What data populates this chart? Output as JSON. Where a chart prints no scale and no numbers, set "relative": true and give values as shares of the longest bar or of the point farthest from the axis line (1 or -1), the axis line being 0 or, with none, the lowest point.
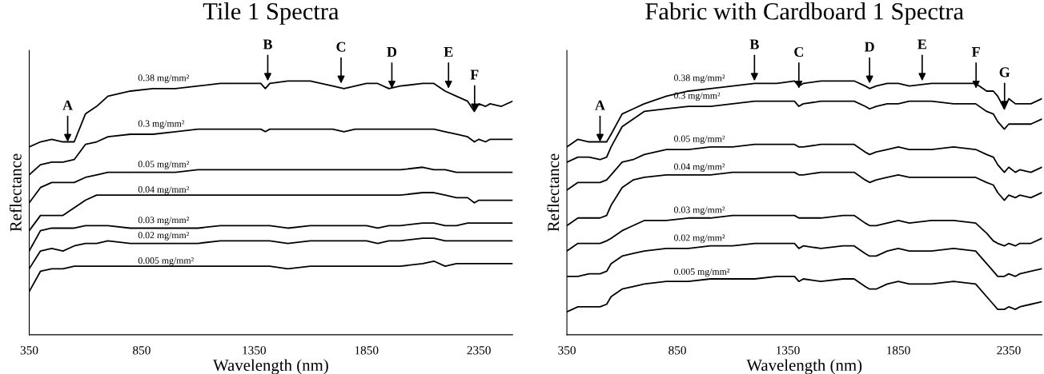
{
  "chart_data": [
    {
      "type": "line",
      "title": "Tile 1 Spectra",
      "xlabel": "Wavelength (nm)",
      "ylabel": "Reflectance",
      "relative": true,
      "xlim": [
        350,
        2500
      ],
      "xticks": [
        350,
        850,
        1350,
        1850,
        2350
      ],
      "grid": false,
      "x": [
        350,
        400,
        450,
        500,
        550,
        600,
        650,
        700,
        800,
        900,
        1000,
        1100,
        1200,
        1300,
        1380,
        1400,
        1420,
        1500,
        1600,
        1700,
        1750,
        1800,
        1850,
        1900,
        1950,
        2000,
        2100,
        2150,
        2200,
        2250,
        2300,
        2330,
        2350,
        2380,
        2400,
        2450,
        2500
      ],
      "series": [
        {
          "name": "0.38 mg/mm²",
          "color": "#000000",
          "values": [
            0.74,
            0.76,
            0.77,
            0.76,
            0.76,
            0.87,
            0.9,
            0.94,
            0.96,
            0.97,
            0.97,
            0.98,
            0.99,
            0.99,
            0.99,
            0.97,
            0.99,
            1.0,
            1.0,
            0.98,
            0.97,
            0.98,
            0.99,
            0.99,
            0.97,
            0.98,
            0.99,
            0.99,
            0.96,
            0.94,
            0.92,
            0.88,
            0.91,
            0.9,
            0.91,
            0.9,
            0.92
          ]
        },
        {
          "name": "0.3 mg/mm²",
          "color": "#000000",
          "values": [
            0.63,
            0.67,
            0.68,
            0.68,
            0.69,
            0.75,
            0.76,
            0.78,
            0.79,
            0.79,
            0.8,
            0.81,
            0.81,
            0.81,
            0.81,
            0.8,
            0.81,
            0.81,
            0.81,
            0.81,
            0.8,
            0.81,
            0.81,
            0.81,
            0.81,
            0.81,
            0.81,
            0.81,
            0.8,
            0.79,
            0.78,
            0.76,
            0.77,
            0.76,
            0.77,
            0.77,
            0.77
          ]
        },
        {
          "name": "0.05 mg/mm²",
          "color": "#000000",
          "values": [
            0.52,
            0.58,
            0.6,
            0.6,
            0.6,
            0.62,
            0.63,
            0.64,
            0.64,
            0.64,
            0.64,
            0.65,
            0.65,
            0.65,
            0.65,
            0.65,
            0.65,
            0.65,
            0.65,
            0.65,
            0.65,
            0.65,
            0.65,
            0.65,
            0.65,
            0.65,
            0.66,
            0.65,
            0.65,
            0.64,
            0.64,
            0.64,
            0.64,
            0.64,
            0.64,
            0.64,
            0.64
          ]
        },
        {
          "name": "0.04 mg/mm²",
          "color": "#000000",
          "values": [
            0.41,
            0.47,
            0.47,
            0.47,
            0.5,
            0.53,
            0.55,
            0.55,
            0.55,
            0.55,
            0.55,
            0.55,
            0.55,
            0.55,
            0.55,
            0.55,
            0.55,
            0.55,
            0.55,
            0.55,
            0.55,
            0.55,
            0.55,
            0.55,
            0.55,
            0.55,
            0.56,
            0.56,
            0.55,
            0.54,
            0.54,
            0.52,
            0.53,
            0.53,
            0.53,
            0.53,
            0.53
          ]
        },
        {
          "name": "0.03 mg/mm²",
          "color": "#000000",
          "values": [
            0.33,
            0.41,
            0.42,
            0.42,
            0.42,
            0.43,
            0.43,
            0.43,
            0.42,
            0.42,
            0.42,
            0.42,
            0.43,
            0.43,
            0.43,
            0.43,
            0.43,
            0.42,
            0.43,
            0.43,
            0.43,
            0.43,
            0.43,
            0.42,
            0.43,
            0.43,
            0.44,
            0.44,
            0.43,
            0.43,
            0.44,
            0.44,
            0.44,
            0.44,
            0.44,
            0.44,
            0.44
          ]
        },
        {
          "name": "0.02 mg/mm²",
          "color": "#000000",
          "values": [
            0.26,
            0.33,
            0.34,
            0.33,
            0.35,
            0.36,
            0.36,
            0.37,
            0.36,
            0.36,
            0.36,
            0.36,
            0.37,
            0.37,
            0.37,
            0.37,
            0.37,
            0.36,
            0.37,
            0.37,
            0.37,
            0.37,
            0.37,
            0.36,
            0.37,
            0.37,
            0.38,
            0.38,
            0.37,
            0.37,
            0.37,
            0.37,
            0.37,
            0.37,
            0.37,
            0.37,
            0.37
          ]
        },
        {
          "name": "0.005 mg/mm²",
          "color": "#000000",
          "values": [
            0.17,
            0.25,
            0.26,
            0.26,
            0.27,
            0.27,
            0.27,
            0.27,
            0.27,
            0.27,
            0.27,
            0.27,
            0.27,
            0.27,
            0.27,
            0.27,
            0.27,
            0.26,
            0.27,
            0.27,
            0.27,
            0.27,
            0.27,
            0.27,
            0.27,
            0.27,
            0.28,
            0.29,
            0.27,
            0.28,
            0.28,
            0.28,
            0.28,
            0.28,
            0.28,
            0.28,
            0.28
          ]
        }
      ],
      "annotations": [
        {
          "text": "A",
          "x": 521,
          "y": 0.76
        },
        {
          "text": "B",
          "x": 1411,
          "y": 1.0
        },
        {
          "text": "C",
          "x": 1737,
          "y": 0.99
        },
        {
          "text": "D",
          "x": 1963,
          "y": 0.97
        },
        {
          "text": "E",
          "x": 2215,
          "y": 0.97
        },
        {
          "text": "F",
          "x": 2331,
          "y": 0.88
        }
      ]
    },
    {
      "type": "line",
      "title": "Fabric with Cardboard 1 Spectra",
      "xlabel": "Wavelength (nm)",
      "ylabel": "Reflectance",
      "relative": true,
      "xlim": [
        350,
        2500
      ],
      "xticks": [
        350,
        850,
        1350,
        1850,
        2350
      ],
      "grid": false,
      "x": [
        350,
        400,
        450,
        500,
        530,
        550,
        600,
        650,
        700,
        800,
        900,
        1000,
        1100,
        1200,
        1300,
        1380,
        1400,
        1420,
        1500,
        1600,
        1650,
        1700,
        1720,
        1750,
        1800,
        1850,
        1900,
        2000,
        2100,
        2200,
        2250,
        2280,
        2300,
        2330,
        2350,
        2380,
        2400,
        2450,
        2500
      ],
      "series": [
        {
          "name": "0.38 mg/mm²",
          "color": "#000000",
          "values": [
            0.74,
            0.77,
            0.76,
            0.76,
            0.76,
            0.79,
            0.87,
            0.89,
            0.91,
            0.94,
            0.96,
            0.97,
            0.98,
            0.99,
            0.99,
            1.0,
            0.98,
            0.99,
            1.0,
            1.0,
            1.0,
            0.98,
            0.97,
            0.98,
            0.99,
            0.99,
            0.98,
            0.99,
            0.99,
            0.99,
            0.96,
            0.96,
            0.94,
            0.89,
            0.93,
            0.91,
            0.91,
            0.91,
            0.93
          ]
        },
        {
          "name": "0.3 mg/mm²",
          "color": "#000000",
          "values": [
            0.68,
            0.7,
            0.7,
            0.69,
            0.7,
            0.74,
            0.82,
            0.85,
            0.88,
            0.89,
            0.9,
            0.9,
            0.91,
            0.92,
            0.92,
            0.92,
            0.9,
            0.91,
            0.92,
            0.92,
            0.92,
            0.9,
            0.89,
            0.9,
            0.91,
            0.91,
            0.92,
            0.92,
            0.91,
            0.91,
            0.88,
            0.87,
            0.84,
            0.81,
            0.83,
            0.83,
            0.83,
            0.83,
            0.85
          ]
        },
        {
          "name": "0.05 mg/mm²",
          "color": "#000000",
          "values": [
            0.57,
            0.6,
            0.6,
            0.6,
            0.61,
            0.63,
            0.68,
            0.69,
            0.71,
            0.73,
            0.73,
            0.74,
            0.74,
            0.75,
            0.75,
            0.75,
            0.74,
            0.74,
            0.75,
            0.75,
            0.75,
            0.72,
            0.71,
            0.72,
            0.73,
            0.74,
            0.73,
            0.73,
            0.74,
            0.73,
            0.71,
            0.7,
            0.67,
            0.64,
            0.66,
            0.64,
            0.65,
            0.64,
            0.66
          ]
        },
        {
          "name": "0.04 mg/mm²",
          "color": "#000000",
          "values": [
            0.43,
            0.46,
            0.46,
            0.46,
            0.47,
            0.51,
            0.58,
            0.61,
            0.62,
            0.63,
            0.63,
            0.63,
            0.64,
            0.64,
            0.64,
            0.64,
            0.63,
            0.63,
            0.64,
            0.64,
            0.64,
            0.61,
            0.6,
            0.61,
            0.62,
            0.63,
            0.62,
            0.62,
            0.62,
            0.62,
            0.6,
            0.59,
            0.56,
            0.53,
            0.55,
            0.54,
            0.55,
            0.54,
            0.56
          ]
        },
        {
          "name": "0.03 mg/mm²",
          "color": "#000000",
          "values": [
            0.33,
            0.36,
            0.36,
            0.36,
            0.37,
            0.38,
            0.41,
            0.43,
            0.45,
            0.45,
            0.46,
            0.46,
            0.47,
            0.47,
            0.47,
            0.47,
            0.46,
            0.46,
            0.46,
            0.47,
            0.47,
            0.44,
            0.43,
            0.43,
            0.44,
            0.45,
            0.44,
            0.45,
            0.45,
            0.44,
            0.4,
            0.37,
            0.36,
            0.35,
            0.36,
            0.35,
            0.36,
            0.36,
            0.38
          ]
        },
        {
          "name": "0.02 mg/mm²",
          "color": "#000000",
          "values": [
            0.23,
            0.23,
            0.24,
            0.24,
            0.25,
            0.28,
            0.31,
            0.32,
            0.33,
            0.34,
            0.34,
            0.35,
            0.35,
            0.36,
            0.36,
            0.36,
            0.34,
            0.35,
            0.34,
            0.35,
            0.35,
            0.32,
            0.31,
            0.31,
            0.33,
            0.34,
            0.33,
            0.33,
            0.34,
            0.33,
            0.28,
            0.25,
            0.23,
            0.23,
            0.24,
            0.23,
            0.24,
            0.25,
            0.26
          ]
        },
        {
          "name": "0.005 mg/mm²",
          "color": "#000000",
          "values": [
            0.09,
            0.11,
            0.11,
            0.11,
            0.12,
            0.15,
            0.18,
            0.19,
            0.2,
            0.21,
            0.21,
            0.22,
            0.22,
            0.22,
            0.23,
            0.23,
            0.21,
            0.22,
            0.21,
            0.22,
            0.22,
            0.19,
            0.18,
            0.18,
            0.2,
            0.21,
            0.2,
            0.2,
            0.21,
            0.2,
            0.15,
            0.12,
            0.1,
            0.1,
            0.11,
            0.1,
            0.11,
            0.12,
            0.13
          ]
        }
      ],
      "annotations": [
        {
          "text": "A",
          "x": 500,
          "y": 0.76
        },
        {
          "text": "B",
          "x": 1199,
          "y": 1.0
        },
        {
          "text": "C",
          "x": 1400,
          "y": 0.97
        },
        {
          "text": "D",
          "x": 1720,
          "y": 0.99
        },
        {
          "text": "E",
          "x": 1958,
          "y": 1.0
        },
        {
          "text": "F",
          "x": 2202,
          "y": 0.97
        },
        {
          "text": "G",
          "x": 2331,
          "y": 0.89
        }
      ]
    }
  ]
}
